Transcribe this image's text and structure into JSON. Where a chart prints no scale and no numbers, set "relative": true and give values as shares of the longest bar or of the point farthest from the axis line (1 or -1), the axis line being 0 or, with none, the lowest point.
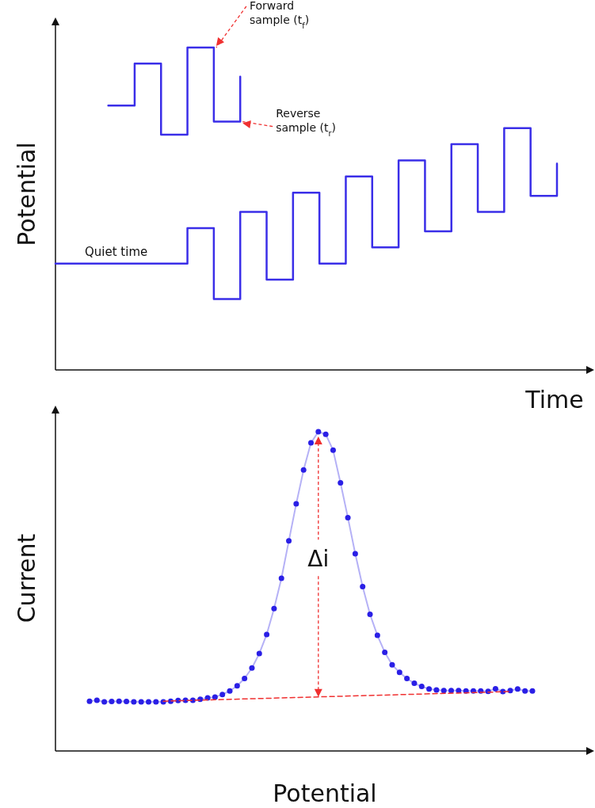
{
  "chart_data": [
    {
      "type": "step",
      "relative": true,
      "xlabel": "Time",
      "ylabel": "Potential",
      "categories": [
        null,
        null,
        null,
        null,
        null,
        null,
        null,
        null,
        null,
        null,
        null,
        null,
        null,
        null,
        null,
        null,
        null,
        null,
        null,
        null
      ],
      "series": [
        {
          "color": "#3a2ee8",
          "values": [
            0.33,
            0.33,
            0.33,
            0.33,
            0.33,
            0.44,
            0.22,
            0.49,
            0.28,
            0.55,
            0.33,
            0.6,
            0.38,
            0.65,
            0.43,
            0.7,
            0.49,
            0.75,
            0.54,
            0.64
          ]
        },
        {
          "color": "#3a2ee8",
          "values": [
            null,
            null,
            0.82,
            0.95,
            0.73,
            1,
            0.77,
            0.91,
            null,
            null,
            null,
            null,
            null,
            null,
            null,
            null,
            null,
            null,
            null,
            null
          ]
        }
      ],
      "annotations": [
        "Forward sample (t$_{f}$)",
        "Reverse sample (t$_{r}$)",
        "Quiet time"
      ]
    },
    {
      "type": "line",
      "relative": true,
      "xlabel": "Potential",
      "ylabel": "Current",
      "categories": [
        null,
        null,
        null,
        null,
        null,
        null,
        null,
        null,
        null,
        null,
        null,
        null,
        null,
        null,
        null,
        null,
        null,
        null,
        null,
        null,
        null,
        null,
        null,
        null,
        null,
        null,
        null,
        null,
        null,
        null,
        null,
        null,
        null,
        null,
        null,
        null,
        null,
        null,
        null,
        null,
        null,
        null,
        null,
        null,
        null,
        null,
        null,
        null,
        null,
        null,
        null,
        null,
        null,
        null,
        null,
        null,
        null,
        null,
        null,
        null,
        null
      ],
      "series": [
        {
          "color": "#2a1fe6",
          "marker": "circle",
          "values": [
            0.156,
            0.159,
            0.154,
            0.155,
            0.156,
            0.155,
            0.154,
            0.154,
            0.154,
            0.154,
            0.154,
            0.156,
            0.158,
            0.159,
            0.159,
            0.162,
            0.166,
            0.169,
            0.177,
            0.188,
            0.204,
            0.227,
            0.26,
            0.305,
            0.365,
            0.446,
            0.541,
            0.658,
            0.774,
            0.88,
            0.965,
            1,
            0.992,
            0.942,
            0.84,
            0.731,
            0.618,
            0.515,
            0.428,
            0.362,
            0.309,
            0.27,
            0.246,
            0.227,
            0.212,
            0.202,
            0.194,
            0.191,
            0.189,
            0.189,
            0.189,
            0.188,
            0.188,
            0.188,
            0.187,
            0.195,
            0.186,
            0.189,
            0.194,
            0.188,
            0.188
          ]
        },
        {
          "color": "#f03030",
          "marker": "none",
          "line_style": "dashed",
          "values": [
            null,
            null,
            null,
            null,
            null,
            null,
            null,
            null,
            null,
            null,
            0.156,
            null,
            null,
            null,
            null,
            null,
            null,
            null,
            null,
            null,
            null,
            null,
            null,
            null,
            null,
            null,
            null,
            null,
            null,
            null,
            null,
            null,
            null,
            null,
            null,
            null,
            null,
            null,
            null,
            null,
            null,
            null,
            null,
            null,
            null,
            null,
            null,
            null,
            null,
            null,
            null,
            null,
            null,
            null,
            null,
            null,
            null,
            0.186,
            null,
            null,
            null
          ]
        }
      ],
      "annotations": [
        "Δi"
      ]
    }
  ]
}
